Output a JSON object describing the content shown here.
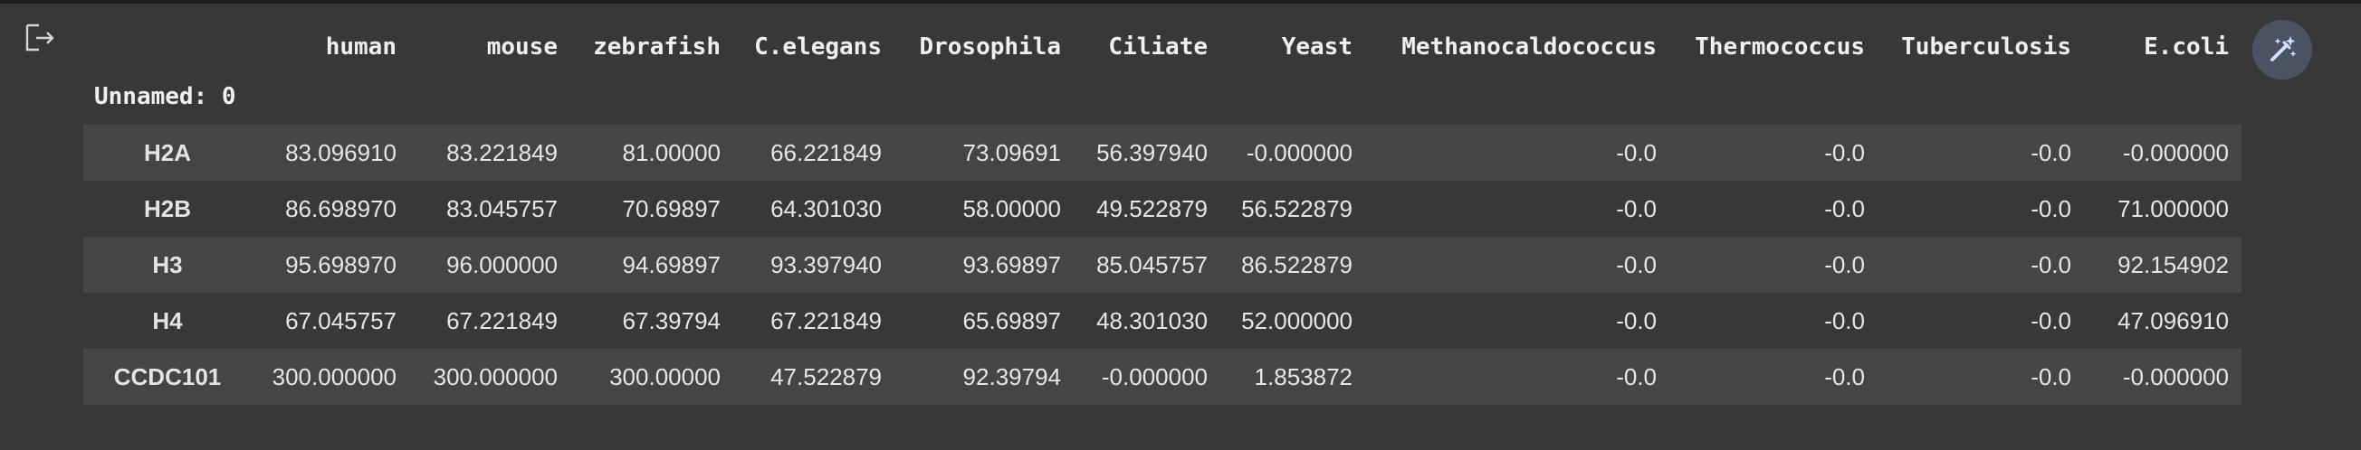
{
  "columns": [
    "human",
    "mouse",
    "zebrafish",
    "C.elegans",
    "Drosophila",
    "Ciliate",
    "Yeast",
    "Methanocaldococcus",
    "Thermococcus",
    "Tuberculosis",
    "E.coli"
  ],
  "index_name": "Unnamed: 0",
  "rows": [
    {
      "label": "H2A",
      "values": [
        "83.096910",
        "83.221849",
        "81.00000",
        "66.221849",
        "73.09691",
        "56.397940",
        "-0.000000",
        "-0.0",
        "-0.0",
        "-0.0",
        "-0.000000"
      ]
    },
    {
      "label": "H2B",
      "values": [
        "86.698970",
        "83.045757",
        "70.69897",
        "64.301030",
        "58.00000",
        "49.522879",
        "56.522879",
        "-0.0",
        "-0.0",
        "-0.0",
        "71.000000"
      ]
    },
    {
      "label": "H3",
      "values": [
        "95.698970",
        "96.000000",
        "94.69897",
        "93.397940",
        "93.69897",
        "85.045757",
        "86.522879",
        "-0.0",
        "-0.0",
        "-0.0",
        "92.154902"
      ]
    },
    {
      "label": "H4",
      "values": [
        "67.045757",
        "67.221849",
        "67.39794",
        "67.221849",
        "65.69897",
        "48.301030",
        "52.000000",
        "-0.0",
        "-0.0",
        "-0.0",
        "47.096910"
      ]
    },
    {
      "label": "CCDC101",
      "values": [
        "300.000000",
        "300.000000",
        "300.00000",
        "47.522879",
        "92.39794",
        "-0.000000",
        "1.853872",
        "-0.0",
        "-0.0",
        "-0.0",
        "-0.000000"
      ]
    }
  ],
  "icons": {
    "output": "output-arrow-icon",
    "magic": "magic-wand-icon"
  },
  "colors": {
    "background": "#383838",
    "row_stripe": "#454545",
    "button": "#4b5363",
    "icon": "#d6d6d6"
  }
}
